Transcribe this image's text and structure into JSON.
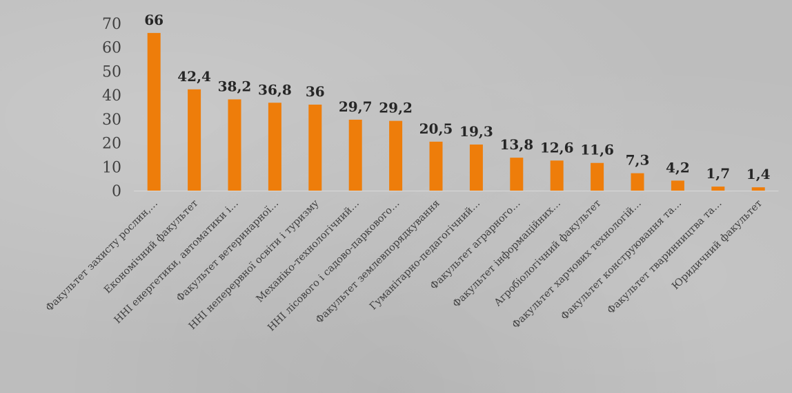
{
  "chart_data": {
    "type": "bar",
    "categories": [
      "Факультет захисту рослин,…",
      "Економічний факультет",
      "ННІ енергетики, автоматики і…",
      "Факультет ветеринарної…",
      "ННІ неперервної освіти і туризму",
      "Механіко-технологічний…",
      "ННІ лісового і садово-паркового…",
      "Факультет землевпорядкування",
      "Гуманітарно-педагогічний…",
      "Факультет аграрного…",
      "Факультет інформаційних…",
      "Агробіологічний факультет",
      "Факультет харчових технологій…",
      "Факультет конструювання та…",
      "Факультет тваринництва та…",
      "Юридичний факультет"
    ],
    "values": [
      66,
      42.4,
      38.2,
      36.8,
      36,
      29.7,
      29.2,
      20.5,
      19.3,
      13.8,
      12.6,
      11.6,
      7.3,
      4.2,
      1.7,
      1.4
    ],
    "value_labels": [
      "66",
      "42,4",
      "38,2",
      "36,8",
      "36",
      "29,7",
      "29,2",
      "20,5",
      "19,3",
      "13,8",
      "12,6",
      "11,6",
      "7,3",
      "4,2",
      "1,7",
      "1,4"
    ],
    "yticks": [
      "0",
      "10",
      "20",
      "30",
      "40",
      "50",
      "60",
      "70"
    ],
    "ylim": [
      0,
      70
    ],
    "grid": false,
    "legend": "none",
    "bar_color": "#ee7d0a",
    "title": "",
    "xlabel": "",
    "ylabel": ""
  }
}
